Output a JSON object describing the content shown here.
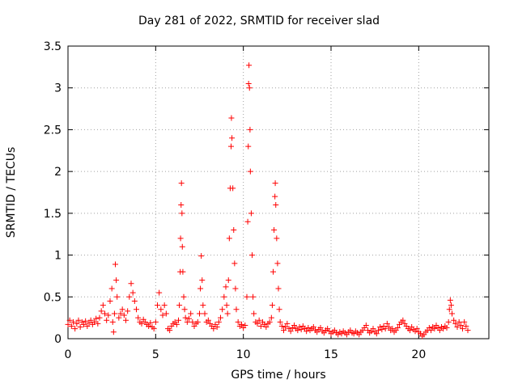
{
  "chart_data": {
    "type": "scatter",
    "title": "Day 281 of 2022, SRMTID for receiver slad",
    "xlabel": "GPS time / hours",
    "ylabel": "SRMTID / TECUs",
    "xlim": [
      0,
      24
    ],
    "ylim": [
      0,
      3.5
    ],
    "xticks": [
      0,
      5,
      10,
      15,
      20
    ],
    "yticks": [
      0,
      0.5,
      1,
      1.5,
      2,
      2.5,
      3,
      3.5
    ],
    "xtick_labels": [
      "0",
      "5",
      "10",
      "15",
      "20"
    ],
    "ytick_labels": [
      "0",
      "0.5",
      "1",
      "1.5",
      "2",
      "2.5",
      "3",
      "3.5"
    ],
    "grid": true,
    "marker": "+",
    "color": "#ff0000",
    "series": [
      {
        "name": "SRMTID",
        "points": [
          [
            0.0,
            0.17
          ],
          [
            0.1,
            0.22
          ],
          [
            0.2,
            0.15
          ],
          [
            0.3,
            0.2
          ],
          [
            0.4,
            0.12
          ],
          [
            0.5,
            0.18
          ],
          [
            0.6,
            0.22
          ],
          [
            0.7,
            0.14
          ],
          [
            0.8,
            0.2
          ],
          [
            0.9,
            0.17
          ],
          [
            1.0,
            0.21
          ],
          [
            1.1,
            0.15
          ],
          [
            1.2,
            0.19
          ],
          [
            1.3,
            0.22
          ],
          [
            1.4,
            0.17
          ],
          [
            1.5,
            0.2
          ],
          [
            1.6,
            0.24
          ],
          [
            1.7,
            0.18
          ],
          [
            1.8,
            0.25
          ],
          [
            1.9,
            0.33
          ],
          [
            2.0,
            0.4
          ],
          [
            2.1,
            0.3
          ],
          [
            2.2,
            0.22
          ],
          [
            2.3,
            0.28
          ],
          [
            2.4,
            0.45
          ],
          [
            2.5,
            0.6
          ],
          [
            2.55,
            0.2
          ],
          [
            2.6,
            0.08
          ],
          [
            2.65,
            0.3
          ],
          [
            2.7,
            0.89
          ],
          [
            2.75,
            0.7
          ],
          [
            2.8,
            0.5
          ],
          [
            2.9,
            0.25
          ],
          [
            3.0,
            0.3
          ],
          [
            3.1,
            0.35
          ],
          [
            3.2,
            0.28
          ],
          [
            3.3,
            0.22
          ],
          [
            3.4,
            0.33
          ],
          [
            3.5,
            0.5
          ],
          [
            3.6,
            0.66
          ],
          [
            3.7,
            0.55
          ],
          [
            3.8,
            0.45
          ],
          [
            3.9,
            0.35
          ],
          [
            4.0,
            0.25
          ],
          [
            4.1,
            0.2
          ],
          [
            4.2,
            0.18
          ],
          [
            4.3,
            0.23
          ],
          [
            4.4,
            0.2
          ],
          [
            4.5,
            0.17
          ],
          [
            4.6,
            0.15
          ],
          [
            4.7,
            0.19
          ],
          [
            4.8,
            0.14
          ],
          [
            4.9,
            0.12
          ],
          [
            5.0,
            0.2
          ],
          [
            5.1,
            0.4
          ],
          [
            5.2,
            0.55
          ],
          [
            5.3,
            0.35
          ],
          [
            5.4,
            0.28
          ],
          [
            5.5,
            0.4
          ],
          [
            5.6,
            0.3
          ],
          [
            5.7,
            0.12
          ],
          [
            5.8,
            0.1
          ],
          [
            5.9,
            0.15
          ],
          [
            6.0,
            0.18
          ],
          [
            6.1,
            0.2
          ],
          [
            6.2,
            0.17
          ],
          [
            6.3,
            0.22
          ],
          [
            6.35,
            0.4
          ],
          [
            6.4,
            0.8
          ],
          [
            6.42,
            1.2
          ],
          [
            6.45,
            1.6
          ],
          [
            6.47,
            1.86
          ],
          [
            6.5,
            1.5
          ],
          [
            6.52,
            1.1
          ],
          [
            6.55,
            0.8
          ],
          [
            6.6,
            0.5
          ],
          [
            6.65,
            0.35
          ],
          [
            6.7,
            0.25
          ],
          [
            6.8,
            0.2
          ],
          [
            6.9,
            0.24
          ],
          [
            7.0,
            0.3
          ],
          [
            7.1,
            0.2
          ],
          [
            7.2,
            0.15
          ],
          [
            7.3,
            0.18
          ],
          [
            7.4,
            0.2
          ],
          [
            7.5,
            0.3
          ],
          [
            7.55,
            0.6
          ],
          [
            7.6,
            0.99
          ],
          [
            7.65,
            0.7
          ],
          [
            7.7,
            0.4
          ],
          [
            7.8,
            0.3
          ],
          [
            7.9,
            0.2
          ],
          [
            8.0,
            0.22
          ],
          [
            8.1,
            0.18
          ],
          [
            8.2,
            0.15
          ],
          [
            8.3,
            0.12
          ],
          [
            8.4,
            0.17
          ],
          [
            8.5,
            0.14
          ],
          [
            8.6,
            0.2
          ],
          [
            8.7,
            0.25
          ],
          [
            8.8,
            0.35
          ],
          [
            8.9,
            0.5
          ],
          [
            9.0,
            0.62
          ],
          [
            9.05,
            0.4
          ],
          [
            9.1,
            0.3
          ],
          [
            9.15,
            0.7
          ],
          [
            9.2,
            1.2
          ],
          [
            9.25,
            1.8
          ],
          [
            9.3,
            2.3
          ],
          [
            9.32,
            2.64
          ],
          [
            9.35,
            2.4
          ],
          [
            9.4,
            1.8
          ],
          [
            9.45,
            1.3
          ],
          [
            9.5,
            0.9
          ],
          [
            9.55,
            0.6
          ],
          [
            9.6,
            0.35
          ],
          [
            9.7,
            0.2
          ],
          [
            9.8,
            0.15
          ],
          [
            9.9,
            0.17
          ],
          [
            10.0,
            0.13
          ],
          [
            10.1,
            0.16
          ],
          [
            10.2,
            0.5
          ],
          [
            10.25,
            1.4
          ],
          [
            10.28,
            2.3
          ],
          [
            10.3,
            3.05
          ],
          [
            10.32,
            3.27
          ],
          [
            10.35,
            3.0
          ],
          [
            10.38,
            2.5
          ],
          [
            10.4,
            2.0
          ],
          [
            10.45,
            1.5
          ],
          [
            10.5,
            1.0
          ],
          [
            10.55,
            0.5
          ],
          [
            10.6,
            0.3
          ],
          [
            10.7,
            0.2
          ],
          [
            10.8,
            0.18
          ],
          [
            10.9,
            0.22
          ],
          [
            11.0,
            0.15
          ],
          [
            11.1,
            0.2
          ],
          [
            11.2,
            0.17
          ],
          [
            11.3,
            0.14
          ],
          [
            11.4,
            0.18
          ],
          [
            11.5,
            0.2
          ],
          [
            11.6,
            0.25
          ],
          [
            11.65,
            0.4
          ],
          [
            11.7,
            0.8
          ],
          [
            11.75,
            1.3
          ],
          [
            11.8,
            1.7
          ],
          [
            11.82,
            1.86
          ],
          [
            11.85,
            1.6
          ],
          [
            11.9,
            1.2
          ],
          [
            11.95,
            0.9
          ],
          [
            12.0,
            0.6
          ],
          [
            12.05,
            0.35
          ],
          [
            12.1,
            0.2
          ],
          [
            12.2,
            0.15
          ],
          [
            12.3,
            0.1
          ],
          [
            12.4,
            0.14
          ],
          [
            12.5,
            0.18
          ],
          [
            12.6,
            0.12
          ],
          [
            12.7,
            0.09
          ],
          [
            12.8,
            0.13
          ],
          [
            12.9,
            0.16
          ],
          [
            13.0,
            0.12
          ],
          [
            13.1,
            0.1
          ],
          [
            13.2,
            0.14
          ],
          [
            13.3,
            0.11
          ],
          [
            13.4,
            0.15
          ],
          [
            13.5,
            0.12
          ],
          [
            13.6,
            0.09
          ],
          [
            13.7,
            0.13
          ],
          [
            13.8,
            0.1
          ],
          [
            13.9,
            0.12
          ],
          [
            14.0,
            0.14
          ],
          [
            14.1,
            0.1
          ],
          [
            14.2,
            0.08
          ],
          [
            14.3,
            0.11
          ],
          [
            14.4,
            0.13
          ],
          [
            14.5,
            0.09
          ],
          [
            14.6,
            0.07
          ],
          [
            14.7,
            0.1
          ],
          [
            14.8,
            0.12
          ],
          [
            14.9,
            0.09
          ],
          [
            15.0,
            0.06
          ],
          [
            15.1,
            0.08
          ],
          [
            15.2,
            0.1
          ],
          [
            15.3,
            0.07
          ],
          [
            15.4,
            0.05
          ],
          [
            15.5,
            0.08
          ],
          [
            15.6,
            0.06
          ],
          [
            15.7,
            0.09
          ],
          [
            15.8,
            0.07
          ],
          [
            15.9,
            0.05
          ],
          [
            16.0,
            0.08
          ],
          [
            16.1,
            0.1
          ],
          [
            16.2,
            0.07
          ],
          [
            16.3,
            0.06
          ],
          [
            16.4,
            0.09
          ],
          [
            16.5,
            0.07
          ],
          [
            16.6,
            0.05
          ],
          [
            16.7,
            0.08
          ],
          [
            16.8,
            0.1
          ],
          [
            16.9,
            0.13
          ],
          [
            17.0,
            0.16
          ],
          [
            17.1,
            0.1
          ],
          [
            17.2,
            0.07
          ],
          [
            17.3,
            0.09
          ],
          [
            17.4,
            0.12
          ],
          [
            17.5,
            0.08
          ],
          [
            17.6,
            0.06
          ],
          [
            17.7,
            0.1
          ],
          [
            17.8,
            0.14
          ],
          [
            17.9,
            0.11
          ],
          [
            18.0,
            0.15
          ],
          [
            18.1,
            0.12
          ],
          [
            18.2,
            0.18
          ],
          [
            18.3,
            0.14
          ],
          [
            18.4,
            0.1
          ],
          [
            18.5,
            0.12
          ],
          [
            18.6,
            0.08
          ],
          [
            18.7,
            0.1
          ],
          [
            18.8,
            0.13
          ],
          [
            18.9,
            0.17
          ],
          [
            19.0,
            0.2
          ],
          [
            19.1,
            0.22
          ],
          [
            19.2,
            0.18
          ],
          [
            19.3,
            0.15
          ],
          [
            19.4,
            0.12
          ],
          [
            19.5,
            0.1
          ],
          [
            19.6,
            0.14
          ],
          [
            19.7,
            0.11
          ],
          [
            19.8,
            0.09
          ],
          [
            19.9,
            0.12
          ],
          [
            20.0,
            0.08
          ],
          [
            20.1,
            0.06
          ],
          [
            20.2,
            0.03
          ],
          [
            20.3,
            0.05
          ],
          [
            20.4,
            0.08
          ],
          [
            20.5,
            0.1
          ],
          [
            20.6,
            0.13
          ],
          [
            20.7,
            0.1
          ],
          [
            20.8,
            0.14
          ],
          [
            20.9,
            0.12
          ],
          [
            21.0,
            0.16
          ],
          [
            21.1,
            0.13
          ],
          [
            21.2,
            0.1
          ],
          [
            21.3,
            0.14
          ],
          [
            21.4,
            0.12
          ],
          [
            21.5,
            0.15
          ],
          [
            21.6,
            0.13
          ],
          [
            21.7,
            0.2
          ],
          [
            21.75,
            0.35
          ],
          [
            21.8,
            0.46
          ],
          [
            21.85,
            0.4
          ],
          [
            21.9,
            0.3
          ],
          [
            22.0,
            0.22
          ],
          [
            22.1,
            0.18
          ],
          [
            22.2,
            0.14
          ],
          [
            22.3,
            0.2
          ],
          [
            22.4,
            0.16
          ],
          [
            22.5,
            0.12
          ],
          [
            22.6,
            0.2
          ],
          [
            22.7,
            0.15
          ],
          [
            22.8,
            0.1
          ]
        ]
      }
    ]
  }
}
